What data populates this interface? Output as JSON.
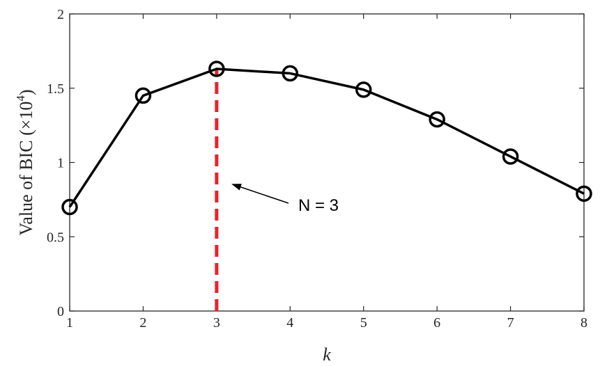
{
  "chart_data": {
    "type": "line",
    "title": "",
    "xlabel": "k",
    "ylabel": "Value of BIC (×10",
    "ylabel_exponent": "4",
    "ylabel_close": ")",
    "x": [
      1,
      2,
      3,
      4,
      5,
      6,
      7,
      8
    ],
    "series": [
      {
        "values": [
          0.7,
          1.45,
          1.63,
          1.6,
          1.49,
          1.29,
          1.04,
          0.79
        ],
        "color": "#000000",
        "marker": "circle-open"
      }
    ],
    "xlim": [
      1,
      8
    ],
    "ylim": [
      0,
      2
    ],
    "xticks": [
      1,
      2,
      3,
      4,
      5,
      6,
      7,
      8
    ],
    "xtick_labels": [
      "1",
      "2",
      "3",
      "4",
      "5",
      "6",
      "7",
      "8"
    ],
    "yticks": [
      0,
      0.5,
      1,
      1.5,
      2
    ],
    "ytick_labels": [
      "0",
      "0.5",
      "1",
      "1.5",
      "2"
    ],
    "grid": false,
    "reference_line": {
      "x": 3,
      "color": "#e8232a",
      "style": "dashed"
    },
    "annotation": {
      "text": "N = 3"
    }
  }
}
